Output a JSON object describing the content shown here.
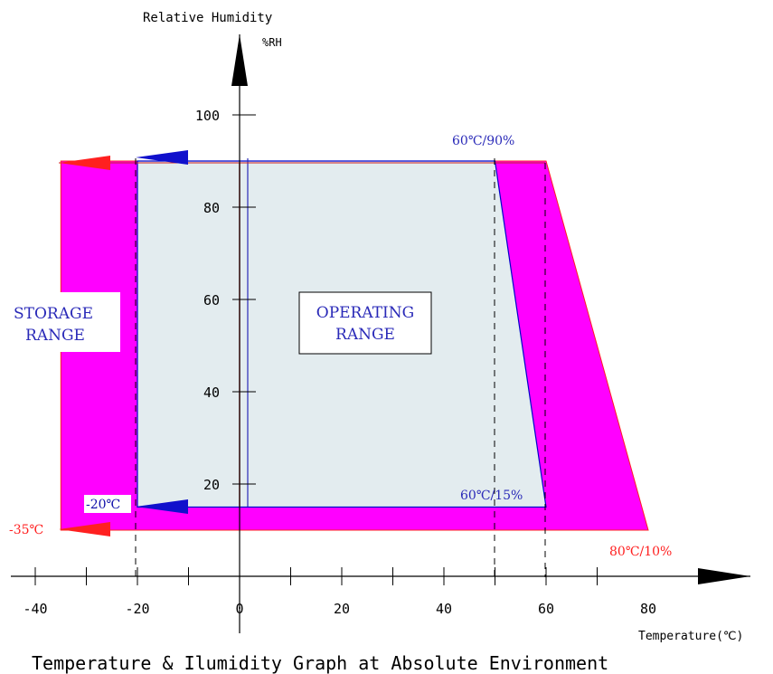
{
  "title": "Temperature & Ilumidity Graph at Absolute Environment",
  "axes": {
    "y_label": "Relative Humidity",
    "y_unit": "%RH",
    "x_label": "Temperature(℃)"
  },
  "chart_data": {
    "type": "area",
    "x_ticks": [
      -40,
      -20,
      0,
      20,
      40,
      60,
      80
    ],
    "y_ticks": [
      20,
      40,
      60,
      80,
      100
    ],
    "x_tick_labels": [
      "-40",
      "-20",
      "0",
      "20",
      "40",
      "60",
      "80"
    ],
    "y_tick_labels": [
      "20",
      "40",
      "60",
      "80",
      "100"
    ],
    "regions": [
      {
        "name": "STORAGE RANGE",
        "color": "#ff00ff",
        "points": [
          [
            -35,
            10
          ],
          [
            -35,
            90
          ],
          [
            60,
            90
          ],
          [
            80,
            10
          ]
        ]
      },
      {
        "name": "OPERATING RANGE",
        "color": "#e3ecef",
        "points": [
          [
            -20,
            15
          ],
          [
            -20,
            90
          ],
          [
            50,
            90
          ],
          [
            60,
            15
          ]
        ]
      }
    ]
  },
  "labels": {
    "storage_range": [
      "STORAGE",
      "RANGE"
    ],
    "operating_range": [
      "OPERATING",
      "RANGE"
    ],
    "op_top_right": "60℃/90%",
    "op_bottom_right": "60℃/15%",
    "op_left": "-20℃",
    "storage_left": "-35℃",
    "storage_bottom_right": "80℃/10%"
  },
  "colors": {
    "storage": "#ff00ff",
    "operating_fill": "#e3ecef",
    "operating_edge": "#0000cc",
    "red": "#ff2020",
    "blue_text": "#2a2ab8",
    "axis": "#000000"
  }
}
